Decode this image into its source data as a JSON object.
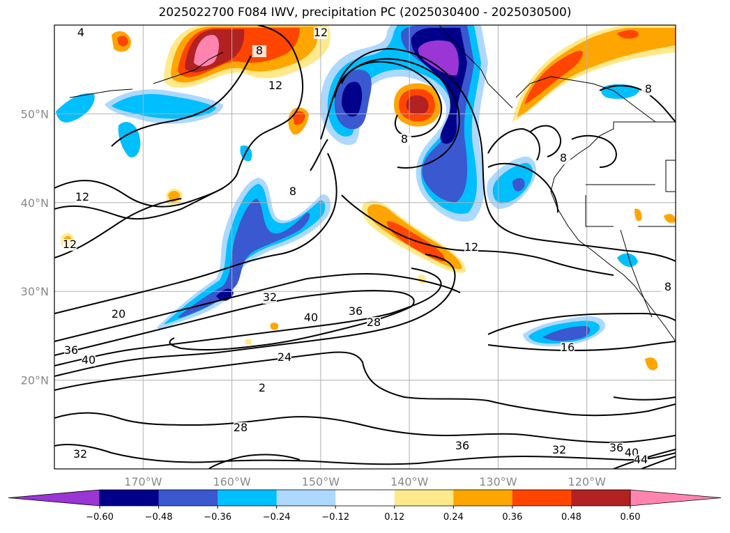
{
  "chart_data": {
    "type": "heatmap",
    "title": "2025022700 F084 IWV, precipitation PC (2025030400 - 2025030500)",
    "map": {
      "lon_range": [
        -180,
        -110
      ],
      "lat_range": [
        10,
        60
      ],
      "gridlines": true,
      "lon_ticks": [
        {
          "value": -170,
          "label": "170°W"
        },
        {
          "value": -160,
          "label": "160°W"
        },
        {
          "value": -150,
          "label": "150°W"
        },
        {
          "value": -140,
          "label": "140°W"
        },
        {
          "value": -130,
          "label": "130°W"
        },
        {
          "value": -120,
          "label": "120°W"
        }
      ],
      "lat_ticks": [
        {
          "value": 20,
          "label": "20°N"
        },
        {
          "value": 30,
          "label": "30°N"
        },
        {
          "value": 40,
          "label": "40°N"
        },
        {
          "value": 50,
          "label": "50°N"
        }
      ]
    },
    "colorbar": {
      "orientation": "horizontal",
      "extend": "both",
      "levels": [
        -0.6,
        -0.48,
        -0.36,
        -0.24,
        -0.12,
        0.12,
        0.24,
        0.36,
        0.48,
        0.6
      ],
      "tick_labels": [
        "−0.60",
        "−0.48",
        "−0.36",
        "−0.24",
        "−0.12",
        "0.12",
        "0.24",
        "0.36",
        "0.48",
        "0.60"
      ],
      "colors": [
        "#9a35d6",
        "#00008b",
        "#3a58d0",
        "#00bfff",
        "#add8ff",
        "#ffffff",
        "#ffe98a",
        "#ffa500",
        "#ff4500",
        "#b22222",
        "#ff85b0"
      ]
    },
    "contour_labels": [
      "4",
      "12",
      "8",
      "12",
      "8",
      "8",
      "12",
      "8",
      "12",
      "12",
      "32",
      "20",
      "36",
      "40",
      "36",
      "28",
      "40",
      "24",
      "2",
      "16",
      "28",
      "36",
      "32",
      "32",
      "36",
      "40",
      "44",
      "8",
      "8"
    ],
    "shaded_regions": [
      {
        "lon": -162.5,
        "lat": 57.5,
        "value": 0.6
      },
      {
        "lon": -160.5,
        "lat": 56.5,
        "value": 0.48
      },
      {
        "lon": -139,
        "lat": 51,
        "value": 0.48
      },
      {
        "lon": -127,
        "lat": 54,
        "value": 0.36
      },
      {
        "lon": -118,
        "lat": 57.5,
        "value": 0.36
      },
      {
        "lon": -135.5,
        "lat": 56,
        "value": -0.6
      },
      {
        "lon": -136,
        "lat": 54,
        "value": -0.48
      },
      {
        "lon": -146.5,
        "lat": 51,
        "value": -0.48
      },
      {
        "lon": -137,
        "lat": 44,
        "value": -0.36
      },
      {
        "lon": -153,
        "lat": 36,
        "value": -0.36
      },
      {
        "lon": -160,
        "lat": 29,
        "value": -0.36
      },
      {
        "lon": -128,
        "lat": 25,
        "value": -0.36
      },
      {
        "lon": -138,
        "lat": 35,
        "value": 0.36
      },
      {
        "lon": -168,
        "lat": 49,
        "value": -0.24
      },
      {
        "lon": -178,
        "lat": 50,
        "value": -0.24
      }
    ]
  }
}
